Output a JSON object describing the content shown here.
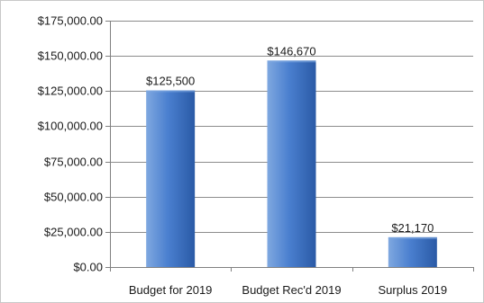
{
  "chart_data": {
    "type": "bar",
    "categories": [
      "Budget for 2019",
      "Budget Rec'd 2019",
      "Surplus 2019"
    ],
    "values": [
      125500,
      146670,
      21170
    ],
    "data_labels": [
      "$125,500",
      "$146,670",
      "$21,170"
    ],
    "yticks": [
      0,
      25000,
      50000,
      75000,
      100000,
      125000,
      150000,
      175000
    ],
    "ytick_labels": [
      "$0.00",
      "$25,000.00",
      "$50,000.00",
      "$75,000.00",
      "$100,000.00",
      "$125,000.00",
      "$150,000.00",
      "$175,000.00"
    ],
    "ylim": [
      0,
      175000
    ],
    "grid": true,
    "legend": "none",
    "colors": {
      "bar_light": "#7fa8e0",
      "bar_mid": "#4a7fcf",
      "bar_dark": "#2a5aa6",
      "grid": "#8c8c8c",
      "axis": "#808080"
    }
  }
}
